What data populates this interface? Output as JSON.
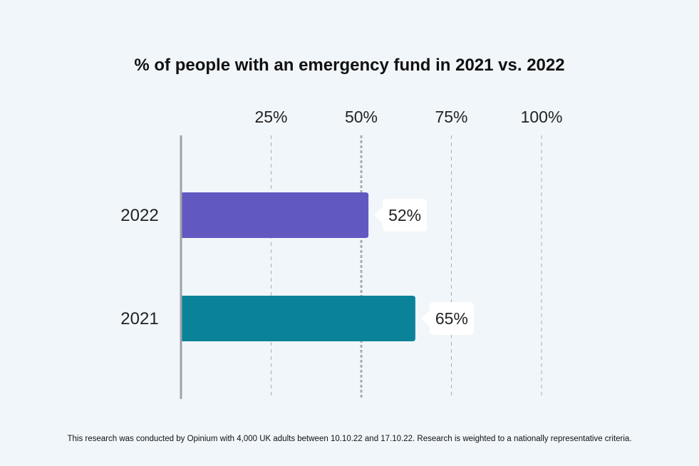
{
  "title": "% of people with an emergency fund in 2021 vs. 2022",
  "footnote": "This research was conducted by Opinium with 4,000 UK adults between 10.10.22 and 17.10.22. Research is weighted to a nationally representative criteria.",
  "colors": {
    "background": "#f1f6fa",
    "bar_2022": "#6159c1",
    "bar_2021": "#0a8399",
    "grid": "#a9adb2",
    "label_box": "#ffffff"
  },
  "chart_data": {
    "type": "bar",
    "orientation": "horizontal",
    "title": "% of people with an emergency fund in 2021 vs. 2022",
    "xlabel": "",
    "ylabel": "",
    "categories": [
      "2022",
      "2021"
    ],
    "values": [
      52,
      65
    ],
    "value_labels": [
      "52%",
      "65%"
    ],
    "xlim": [
      0,
      100
    ],
    "x_ticks": [
      25,
      50,
      75,
      100
    ],
    "x_tick_labels": [
      "25%",
      "50%",
      "75%",
      "100%"
    ],
    "axis_position": "top",
    "grid": true,
    "legend": "none"
  }
}
